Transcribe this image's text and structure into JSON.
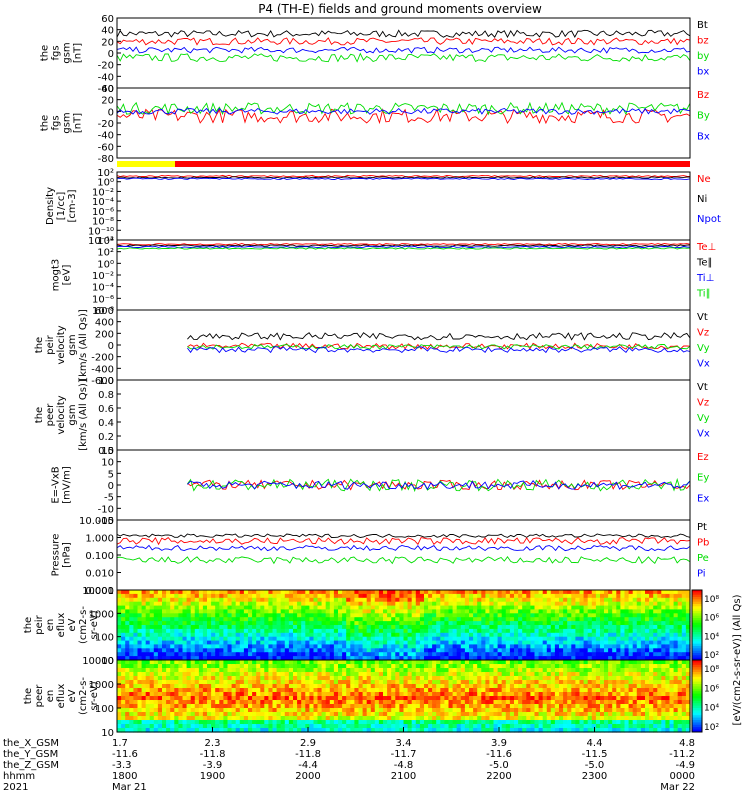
{
  "title": "P4 (TH-E) fields and ground moments overview",
  "colors": {
    "black": "#000000",
    "red": "#ff0000",
    "green": "#00dd00",
    "blue": "#0000ff",
    "yellow": "#ffff00"
  },
  "chart_data": [
    {
      "type": "line",
      "id": "p1",
      "ylabel": [
        "the",
        "fgs",
        "gsm",
        "[nT]"
      ],
      "ticks": [
        "60",
        "40",
        "20",
        "0",
        "-20",
        "-40",
        "-60"
      ],
      "series": [
        {
          "name": "Bt",
          "color": "black",
          "level": 33,
          "noise": 6
        },
        {
          "name": "bz",
          "color": "red",
          "level": 20,
          "noise": 6
        },
        {
          "name": "by",
          "color": "green",
          "level": -8,
          "noise": 7
        },
        {
          "name": "bx",
          "color": "blue",
          "level": 5,
          "noise": 5
        }
      ]
    },
    {
      "type": "line",
      "id": "p2",
      "ylabel": [
        "the",
        "fgs",
        "gsm",
        "[nT]"
      ],
      "ticks": [
        "40",
        "20",
        "0",
        "-20",
        "-40",
        "-60",
        "-80"
      ],
      "series": [
        {
          "name": "Bz",
          "color": "red",
          "level": -8,
          "noise": 12
        },
        {
          "name": "By",
          "color": "green",
          "level": 5,
          "noise": 10
        },
        {
          "name": "Bx",
          "color": "blue",
          "level": 0,
          "noise": 5
        }
      ]
    },
    {
      "type": "line",
      "id": "p3",
      "ylabel": [
        "Density",
        "[1/cc]",
        "[cm-3]"
      ],
      "ticks": [
        "10²",
        "10⁰",
        "10⁻²",
        "10⁻⁴",
        "10⁻⁶",
        "10⁻⁸",
        "10⁻¹⁰",
        "10⁻¹²"
      ],
      "series": [
        {
          "name": "Ne",
          "color": "red",
          "level": 1.0,
          "noise": 0.15
        },
        {
          "name": "Ni",
          "color": "black",
          "level": 1.05,
          "noise": 0.15
        },
        {
          "name": "Npot",
          "color": "blue",
          "level": 0.95,
          "noise": 0.1
        }
      ]
    },
    {
      "type": "line",
      "id": "p4",
      "ylabel": [
        "mogt3",
        "[eV]"
      ],
      "ticks": [
        "10⁴",
        "10²",
        "10⁰",
        "10⁻²",
        "10⁻⁴",
        "10⁻⁶",
        "10⁻⁸"
      ],
      "series": [
        {
          "name": "Te⊥",
          "color": "red",
          "level": 3.0,
          "noise": 0.25
        },
        {
          "name": "Te∥",
          "color": "black",
          "level": 3.2,
          "noise": 0.2
        },
        {
          "name": "Ti⊥",
          "color": "blue",
          "level": 3.5,
          "noise": 0.15
        },
        {
          "name": "Ti∥",
          "color": "green",
          "level": 3.4,
          "noise": 0.15
        }
      ]
    },
    {
      "type": "line",
      "id": "p5",
      "ylabel": [
        "the",
        "peir",
        "velocity",
        "gsm",
        "[km/s (All Qs)]"
      ],
      "ticks": [
        "600",
        "400",
        "200",
        "0",
        "-200",
        "-400",
        "-600"
      ],
      "series": [
        {
          "name": "Vt",
          "color": "black",
          "level": 150,
          "noise": 60
        },
        {
          "name": "Vz",
          "color": "red",
          "level": -20,
          "noise": 50
        },
        {
          "name": "Vy",
          "color": "green",
          "level": -30,
          "noise": 40
        },
        {
          "name": "Vx",
          "color": "blue",
          "level": -80,
          "noise": 50
        }
      ]
    },
    {
      "type": "line",
      "id": "p6",
      "ylabel": [
        "the",
        "peer",
        "velocity",
        "gsm",
        "[km/s (All Qs)]"
      ],
      "ticks": [
        "1.0",
        "0.8",
        "0.6",
        "0.4",
        "0.2",
        "0.0"
      ],
      "series": [
        {
          "name": "Vt",
          "color": "black"
        },
        {
          "name": "Vz",
          "color": "red"
        },
        {
          "name": "Vy",
          "color": "green"
        },
        {
          "name": "Vx",
          "color": "blue"
        }
      ]
    },
    {
      "type": "line",
      "id": "p7",
      "ylabel": [
        "E=-VxB",
        "[mV/m]"
      ],
      "ticks": [
        "15",
        "10",
        "5",
        "0",
        "-5",
        "-10",
        "-15"
      ],
      "series": [
        {
          "name": "Ez",
          "color": "red",
          "level": 0,
          "noise": 2
        },
        {
          "name": "Ey",
          "color": "green",
          "level": 0,
          "noise": 2.5
        },
        {
          "name": "Ex",
          "color": "blue",
          "level": 0,
          "noise": 1.8
        }
      ]
    },
    {
      "type": "line",
      "id": "p8",
      "ylabel": [
        "Pressure",
        "[nPa]"
      ],
      "ticks": [
        "10.000",
        "1.000",
        "0.100",
        "0.010",
        "0.001"
      ],
      "series": [
        {
          "name": "Pt",
          "color": "black",
          "level": 0.1,
          "noise": 0.1
        },
        {
          "name": "Pb",
          "color": "red",
          "level": -0.2,
          "noise": 0.2
        },
        {
          "name": "Pe",
          "color": "green",
          "level": -1.3,
          "noise": 0.2
        },
        {
          "name": "Pi",
          "color": "blue",
          "level": -0.6,
          "noise": 0.15
        }
      ]
    },
    {
      "type": "heatmap",
      "id": "p9",
      "ylabel": [
        "the",
        "peir",
        "en",
        "eflux",
        "eV",
        "(cm2-s-",
        "sr-eV)"
      ],
      "ticks": [
        "10000",
        "1000",
        "100",
        "10"
      ]
    },
    {
      "type": "heatmap",
      "id": "p10",
      "ylabel": [
        "the",
        "peer",
        "en",
        "eflux",
        "eV",
        "(cm2-s-",
        "sr-eV)"
      ],
      "ticks": [
        "10000",
        "1000",
        "100",
        "10"
      ]
    }
  ],
  "colorbar": {
    "label": "[eV/(cm2-s-sr-eV)] (All Qs)",
    "ticks_upper": [
      "10⁸",
      "10⁶",
      "10⁴",
      "10²"
    ],
    "ticks_lower": [
      "10⁸",
      "10⁶",
      "10⁴",
      "10²"
    ]
  },
  "xaxis": {
    "row_labels": [
      "the_X_GSM",
      "the_Y_GSM",
      "the_Z_GSM",
      "hhmm",
      "2021"
    ],
    "ticks": [
      {
        "x": "1.7",
        "y": "-11.6",
        "z": "-3.3",
        "t": "1800",
        "d": "Mar 21"
      },
      {
        "x": "2.3",
        "y": "-11.8",
        "z": "-3.9",
        "t": "1900",
        "d": ""
      },
      {
        "x": "2.9",
        "y": "-11.8",
        "z": "-4.4",
        "t": "2000",
        "d": ""
      },
      {
        "x": "3.4",
        "y": "-11.7",
        "z": "-4.8",
        "t": "2100",
        "d": ""
      },
      {
        "x": "3.9",
        "y": "-11.6",
        "z": "-5.0",
        "t": "2200",
        "d": ""
      },
      {
        "x": "4.4",
        "y": "-11.5",
        "z": "-5.0",
        "t": "2300",
        "d": ""
      },
      {
        "x": "4.8",
        "y": "-11.2",
        "z": "-4.9",
        "t": "0000",
        "d": "Mar 22"
      }
    ]
  }
}
